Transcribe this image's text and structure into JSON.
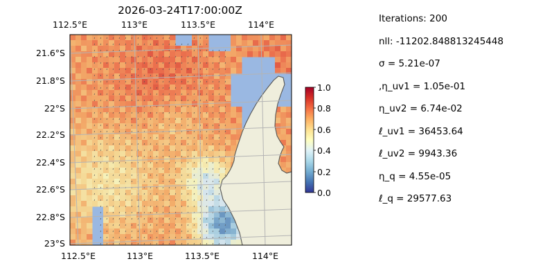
{
  "chart_data": {
    "type": "heatmap",
    "title": "2026-03-24T17:00:00Z",
    "x_ticks": [
      "112.5°E",
      "113°E",
      "113.5°E",
      "114°E"
    ],
    "y_ticks": [
      "21.6°S",
      "21.8°S",
      "22°S",
      "22.2°S",
      "22.4°S",
      "22.6°S",
      "22.8°S",
      "23°S"
    ],
    "xlim": [
      112.5,
      114.2
    ],
    "ylim": [
      -23.0,
      -21.5
    ],
    "colorbar": {
      "range": [
        0.0,
        1.0
      ],
      "ticks": [
        "0.0",
        "0.2",
        "0.4",
        "0.6",
        "0.8",
        "1.0"
      ],
      "colormap": "RdYlBu_r"
    },
    "colors": {
      "ocean_mask": "#9ab8e2",
      "land": "#efeedc",
      "coast": "#555555",
      "grid": "#b4b4b4"
    },
    "grid": true
  },
  "params": [
    "Iterations: 200",
    "nll: -11202.848813245448",
    "σ = 5.21e-07",
    ",η_uv1 = 1.05e-01",
    "η_uv2 = 6.74e-02",
    "ℓ_uv1 = 36453.64",
    "ℓ_uv2 = 9943.36",
    "η_q = 4.55e-05",
    "ℓ_q = 29577.63"
  ]
}
